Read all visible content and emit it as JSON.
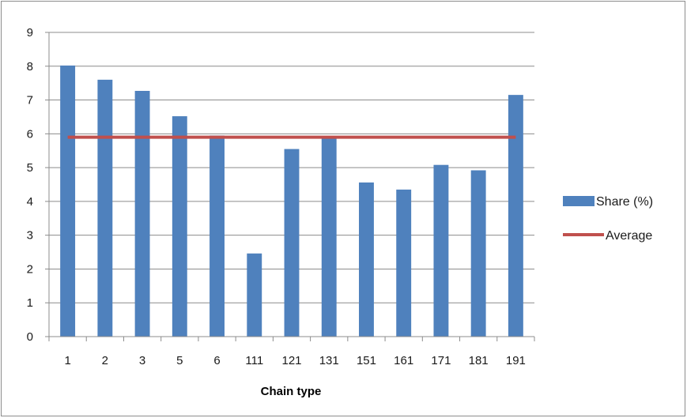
{
  "chart_data": {
    "type": "bar",
    "title": "",
    "xlabel": "Chain type",
    "ylabel": "",
    "categories": [
      "1",
      "2",
      "3",
      "5",
      "6",
      "111",
      "121",
      "131",
      "151",
      "161",
      "171",
      "181",
      "191"
    ],
    "series": [
      {
        "name": "Share (%)",
        "type": "bar",
        "color": "#4f81bd",
        "values": [
          8.02,
          7.6,
          7.27,
          6.52,
          5.95,
          2.46,
          5.55,
          5.9,
          4.56,
          4.35,
          5.08,
          4.92,
          7.15
        ]
      },
      {
        "name": "Average",
        "type": "line",
        "color": "#c0504d",
        "values": [
          5.9,
          5.9,
          5.9,
          5.9,
          5.9,
          5.9,
          5.9,
          5.9,
          5.9,
          5.9,
          5.9,
          5.9,
          5.9
        ]
      }
    ],
    "ylim": [
      0,
      9
    ],
    "yticks": [
      "0",
      "1",
      "2",
      "3",
      "4",
      "5",
      "6",
      "7",
      "8",
      "9"
    ],
    "grid": true,
    "legend": "right"
  }
}
